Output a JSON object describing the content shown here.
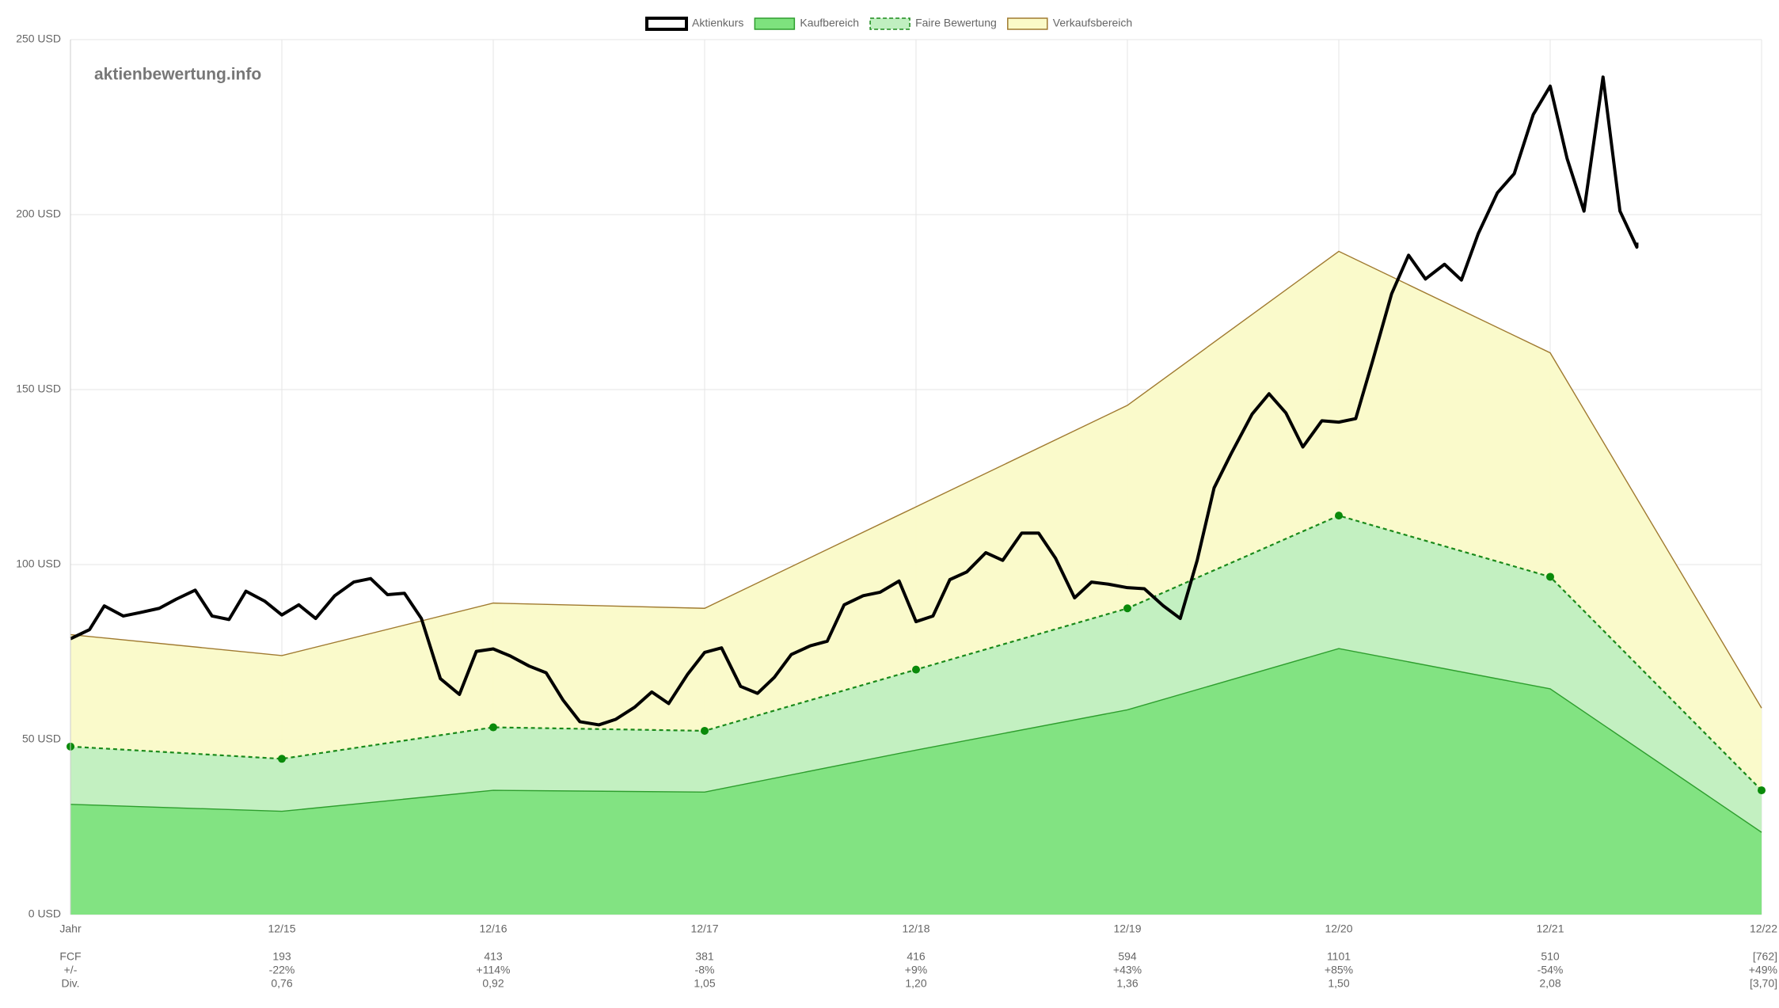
{
  "chart_data": {
    "type": "line",
    "watermark": "aktienbewertung.info",
    "categories": [
      "Jahr",
      "12/15",
      "12/16",
      "12/17",
      "12/18",
      "12/19",
      "12/20",
      "12/21",
      "12/22"
    ],
    "xlim": [
      0,
      8
    ],
    "ylim": [
      0,
      250
    ],
    "yticks": [
      {
        "value": 0,
        "label": "0 USD"
      },
      {
        "value": 50,
        "label": "50 USD"
      },
      {
        "value": 100,
        "label": "100 USD"
      },
      {
        "value": 150,
        "label": "150 USD"
      },
      {
        "value": 200,
        "label": "200 USD"
      },
      {
        "value": 250,
        "label": "250 USD"
      }
    ],
    "grid": true,
    "legend": "top",
    "series": [
      {
        "name": "Aktienkurs",
        "color": "#000000",
        "legend_fill": "#ffffff",
        "x": [
          0,
          0.09,
          0.16,
          0.25,
          0.33,
          0.42,
          0.5,
          0.59,
          0.67,
          0.75,
          0.83,
          0.92,
          1.0,
          1.08,
          1.16,
          1.25,
          1.34,
          1.42,
          1.5,
          1.58,
          1.66,
          1.75,
          1.84,
          1.92,
          2.0,
          2.08,
          2.17,
          2.25,
          2.33,
          2.41,
          2.5,
          2.58,
          2.67,
          2.75,
          2.83,
          2.92,
          3.0,
          3.08,
          3.17,
          3.25,
          3.33,
          3.41,
          3.5,
          3.58,
          3.66,
          3.75,
          3.83,
          3.92,
          4.0,
          4.08,
          4.16,
          4.24,
          4.33,
          4.41,
          4.5,
          4.58,
          4.66,
          4.75,
          4.83,
          4.91,
          5.0,
          5.08,
          5.17,
          5.25,
          5.33,
          5.41,
          5.49,
          5.59,
          5.67,
          5.75,
          5.83,
          5.92,
          6.0,
          6.08,
          6.16,
          6.25,
          6.33,
          6.41,
          6.5,
          6.58,
          6.66,
          6.75,
          6.83,
          6.92,
          7.0,
          7.08,
          7.16,
          7.25,
          7.33,
          7.41,
          7.41
        ],
        "values": [
          78.8,
          81.4,
          88.2,
          85.3,
          86.3,
          87.5,
          90.1,
          92.7,
          85.3,
          84.3,
          92.4,
          89.5,
          85.6,
          88.5,
          84.6,
          91.1,
          95.0,
          96.0,
          91.4,
          91.8,
          84.6,
          67.4,
          62.9,
          75.2,
          75.9,
          73.9,
          71.0,
          69.1,
          61.3,
          55.1,
          54.2,
          55.8,
          59.3,
          63.6,
          60.3,
          68.7,
          74.9,
          76.2,
          65.2,
          63.2,
          67.8,
          74.3,
          76.8,
          78.1,
          88.5,
          91.1,
          92.1,
          95.3,
          83.7,
          85.3,
          95.7,
          97.9,
          103.4,
          101.2,
          109.0,
          109.0,
          101.8,
          90.5,
          95.0,
          94.4,
          93.4,
          93.1,
          88.2,
          84.6,
          101.2,
          121.9,
          131.6,
          143.0,
          148.8,
          143.3,
          133.6,
          141.1,
          140.7,
          141.7,
          158.2,
          177.4,
          188.4,
          181.6,
          185.8,
          181.3,
          194.6,
          206.2,
          211.7,
          228.6,
          236.7,
          216.0,
          201.0,
          239.3,
          201.0,
          190.7,
          192.0
        ]
      },
      {
        "name": "Kaufbereich",
        "color": "#2e9e2e",
        "fill": "#7ee27e",
        "values": [
          31.5,
          29.5,
          35.5,
          35,
          47,
          58.5,
          76,
          64.5,
          23.5
        ]
      },
      {
        "name": "Faire Bewertung",
        "color": "#1a8a1a",
        "fill": "#c0efc0",
        "dashed": true,
        "markers": true,
        "values": [
          48,
          44.5,
          53.5,
          52.5,
          70,
          87.5,
          114,
          96.5,
          35.5
        ]
      },
      {
        "name": "Verkaufsbereich",
        "color": "#a07a30",
        "fill": "#fafac8",
        "values": [
          80,
          74,
          89,
          87.5,
          116.5,
          145.5,
          189.5,
          160.5,
          59
        ]
      }
    ],
    "table": [
      {
        "label": "FCF",
        "values": [
          "193",
          "413",
          "381",
          "416",
          "594",
          "1101",
          "510",
          "[762]"
        ]
      },
      {
        "label": "+/-",
        "values": [
          "-22%",
          "+114%",
          "-8%",
          "+9%",
          "+43%",
          "+85%",
          "-54%",
          "+49%"
        ]
      },
      {
        "label": "Div.",
        "values": [
          "0,76",
          "0,92",
          "1,05",
          "1,20",
          "1,36",
          "1,50",
          "2,08",
          "[3,70]"
        ]
      }
    ]
  }
}
